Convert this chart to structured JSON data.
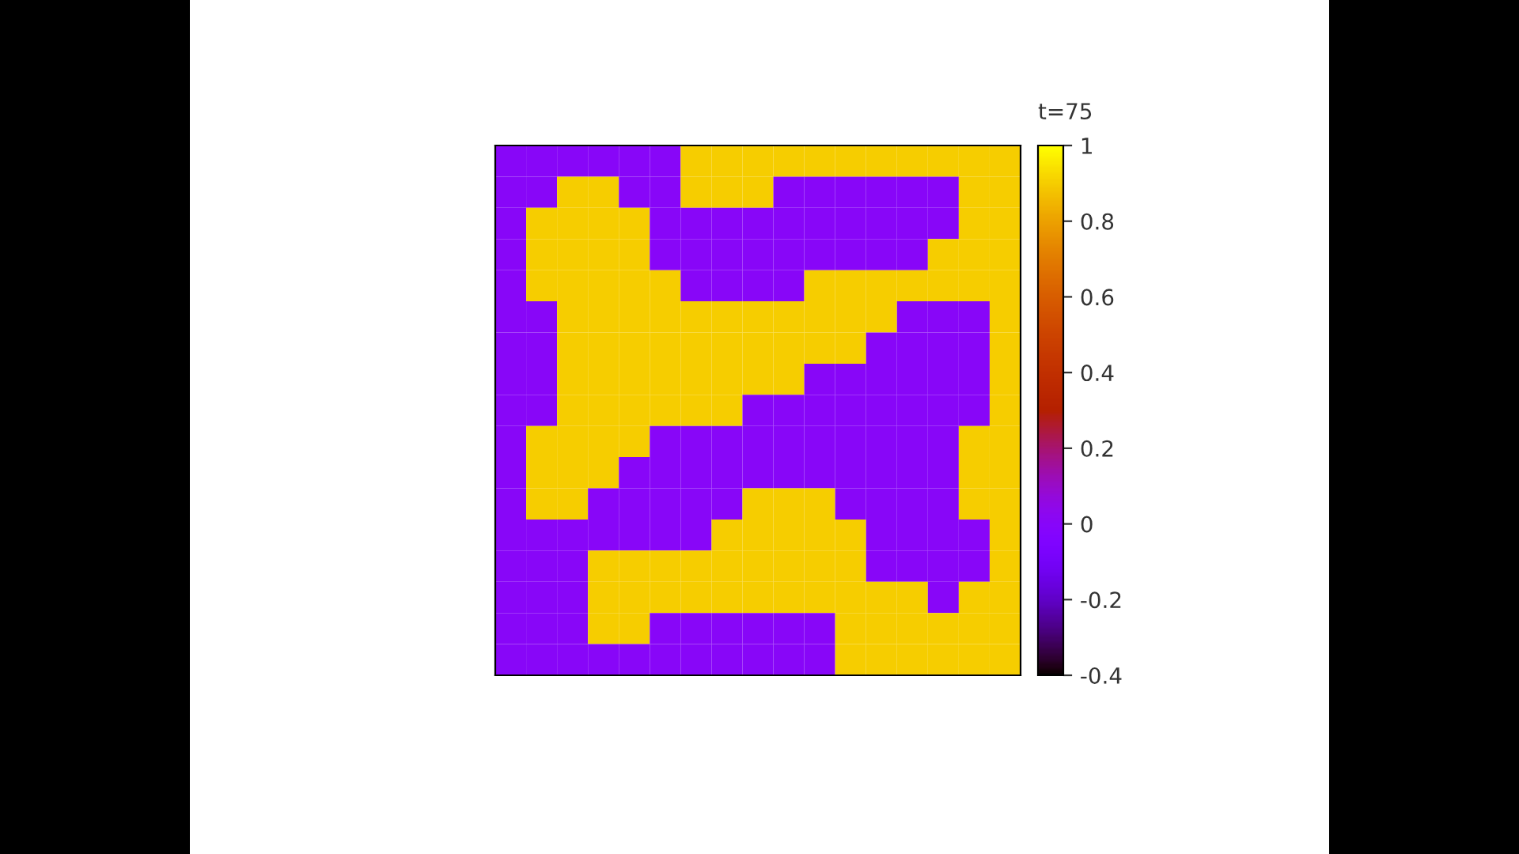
{
  "chart_data": {
    "type": "heatmap",
    "clabel": "t=75",
    "categories": [
      null,
      null,
      null,
      null,
      null,
      null,
      null,
      null,
      null,
      null,
      null,
      null,
      null,
      null,
      null,
      null,
      null
    ],
    "y_categories": [
      null,
      null,
      null,
      null,
      null,
      null,
      null,
      null,
      null,
      null,
      null,
      null,
      null,
      null,
      null,
      null,
      null
    ],
    "clim": [
      -0.4,
      1
    ],
    "cticks": [
      -0.4,
      -0.2,
      0,
      0.2,
      0.4,
      0.6,
      0.8,
      1
    ],
    "cells": [
      [
        0,
        0,
        0,
        0,
        0,
        0,
        0.9,
        0.9,
        0.9,
        0.9,
        0.9,
        0.9,
        0.9,
        0.9,
        0.9,
        0.9,
        0.9
      ],
      [
        0,
        0,
        0.9,
        0.9,
        0,
        0,
        0.9,
        0.9,
        0.9,
        0,
        0,
        0,
        0,
        0,
        0,
        0.9,
        0.9
      ],
      [
        0,
        0.9,
        0.9,
        0.9,
        0.9,
        0,
        0,
        0,
        0,
        0,
        0,
        0,
        0,
        0,
        0,
        0.9,
        0.9
      ],
      [
        0,
        0.9,
        0.9,
        0.9,
        0.9,
        0,
        0,
        0,
        0,
        0,
        0,
        0,
        0,
        0,
        0.9,
        0.9,
        0.9
      ],
      [
        0,
        0.9,
        0.9,
        0.9,
        0.9,
        0.9,
        0,
        0,
        0,
        0,
        0.9,
        0.9,
        0.9,
        0.9,
        0.9,
        0.9,
        0.9
      ],
      [
        0,
        0,
        0.9,
        0.9,
        0.9,
        0.9,
        0.9,
        0.9,
        0.9,
        0.9,
        0.9,
        0.9,
        0.9,
        0,
        0,
        0,
        0.9
      ],
      [
        0,
        0,
        0.9,
        0.9,
        0.9,
        0.9,
        0.9,
        0.9,
        0.9,
        0.9,
        0.9,
        0.9,
        0,
        0,
        0,
        0,
        0.9
      ],
      [
        0,
        0,
        0.9,
        0.9,
        0.9,
        0.9,
        0.9,
        0.9,
        0.9,
        0.9,
        0,
        0,
        0,
        0,
        0,
        0,
        0.9
      ],
      [
        0,
        0,
        0.9,
        0.9,
        0.9,
        0.9,
        0.9,
        0.9,
        0,
        0,
        0,
        0,
        0,
        0,
        0,
        0,
        0.9
      ],
      [
        0,
        0.9,
        0.9,
        0.9,
        0.9,
        0,
        0,
        0,
        0,
        0,
        0,
        0,
        0,
        0,
        0,
        0.9,
        0.9
      ],
      [
        0,
        0.9,
        0.9,
        0.9,
        0,
        0,
        0,
        0,
        0,
        0,
        0,
        0,
        0,
        0,
        0,
        0.9,
        0.9
      ],
      [
        0,
        0.9,
        0.9,
        0,
        0,
        0,
        0,
        0,
        0.9,
        0.9,
        0.9,
        0,
        0,
        0,
        0,
        0.9,
        0.9
      ],
      [
        0,
        0,
        0,
        0,
        0,
        0,
        0,
        0.9,
        0.9,
        0.9,
        0.9,
        0.9,
        0,
        0,
        0,
        0,
        0.9
      ],
      [
        0,
        0,
        0,
        0.9,
        0.9,
        0.9,
        0.9,
        0.9,
        0.9,
        0.9,
        0.9,
        0.9,
        0,
        0,
        0,
        0,
        0.9
      ],
      [
        0,
        0,
        0,
        0.9,
        0.9,
        0.9,
        0.9,
        0.9,
        0.9,
        0.9,
        0.9,
        0.9,
        0.9,
        0.9,
        0,
        0.9,
        0.9
      ],
      [
        0,
        0,
        0,
        0.9,
        0.9,
        0,
        0,
        0,
        0,
        0,
        0,
        0.9,
        0.9,
        0.9,
        0.9,
        0.9,
        0.9
      ],
      [
        0,
        0,
        0,
        0,
        0,
        0,
        0,
        0,
        0,
        0,
        0,
        0.9,
        0.9,
        0.9,
        0.9,
        0.9,
        0.9
      ]
    ]
  }
}
